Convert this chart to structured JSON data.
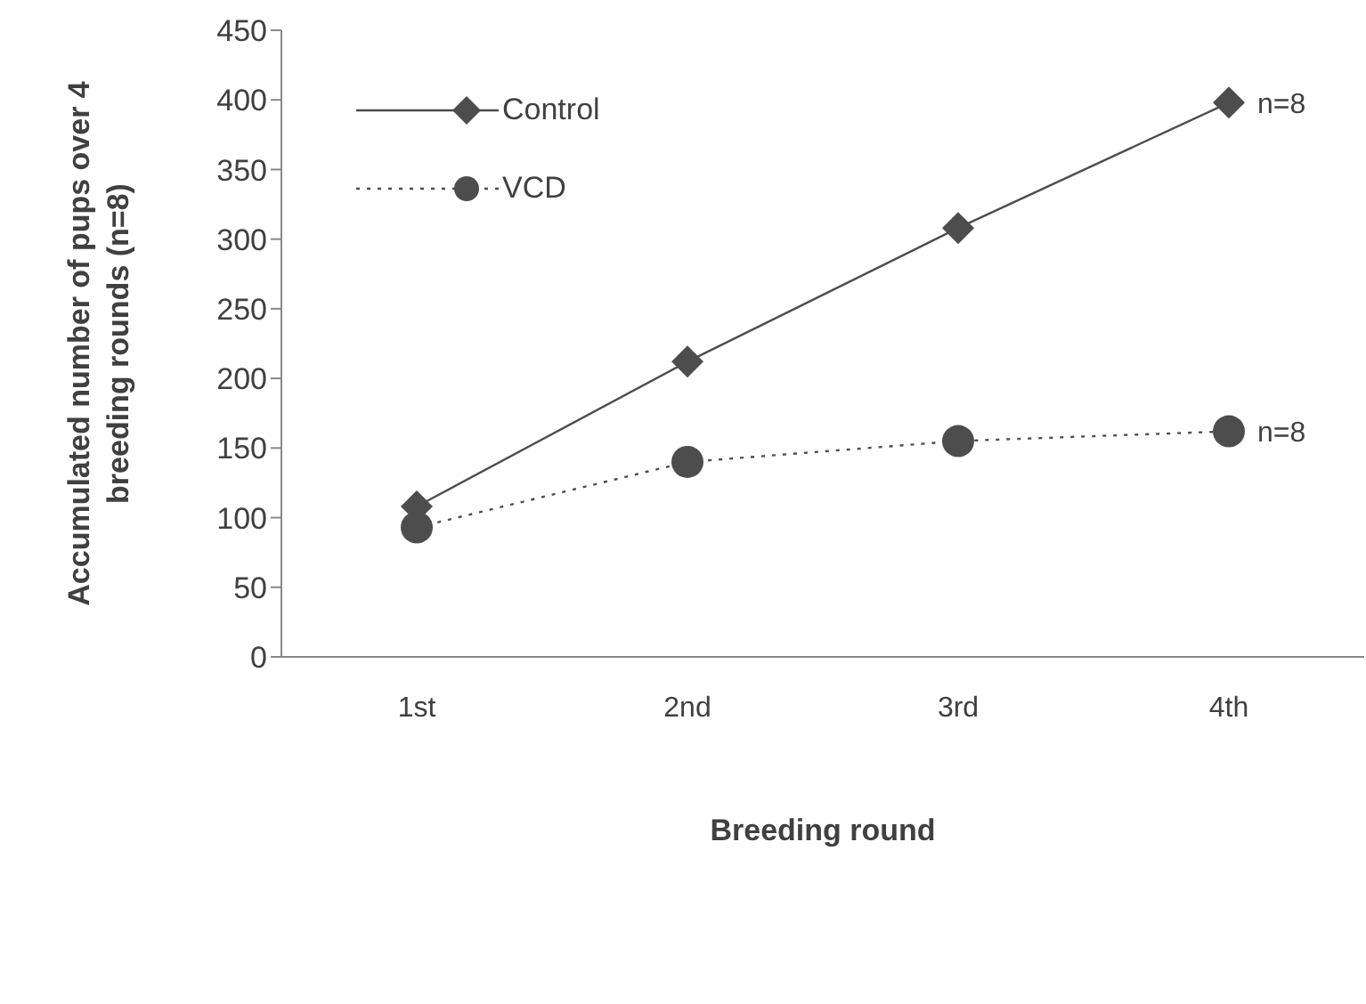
{
  "chart_data": {
    "type": "line",
    "xlabel": "Breeding round",
    "ylabel": "Accumulated number of pups over 4 breeding rounds (n=8)",
    "categories": [
      "1st",
      "2nd",
      "3rd",
      "4th"
    ],
    "series": [
      {
        "name": "Control",
        "color": "#4d4d4d",
        "values": [
          108,
          212,
          308,
          398
        ],
        "marker": "diamond",
        "line_style": "solid"
      },
      {
        "name": "VCD",
        "color": "#4d4d4d",
        "values": [
          93,
          140,
          155,
          162
        ],
        "marker": "circle",
        "line_style": "dotted"
      }
    ],
    "ylim": [
      0,
      450
    ],
    "yticks": [
      0,
      50,
      100,
      150,
      200,
      250,
      300,
      350,
      400,
      450
    ],
    "legend": "top left",
    "annotations": [
      {
        "text": "n=8",
        "x": "4th",
        "y": 398
      },
      {
        "text": "n=8",
        "x": "4th",
        "y": 162
      }
    ]
  }
}
